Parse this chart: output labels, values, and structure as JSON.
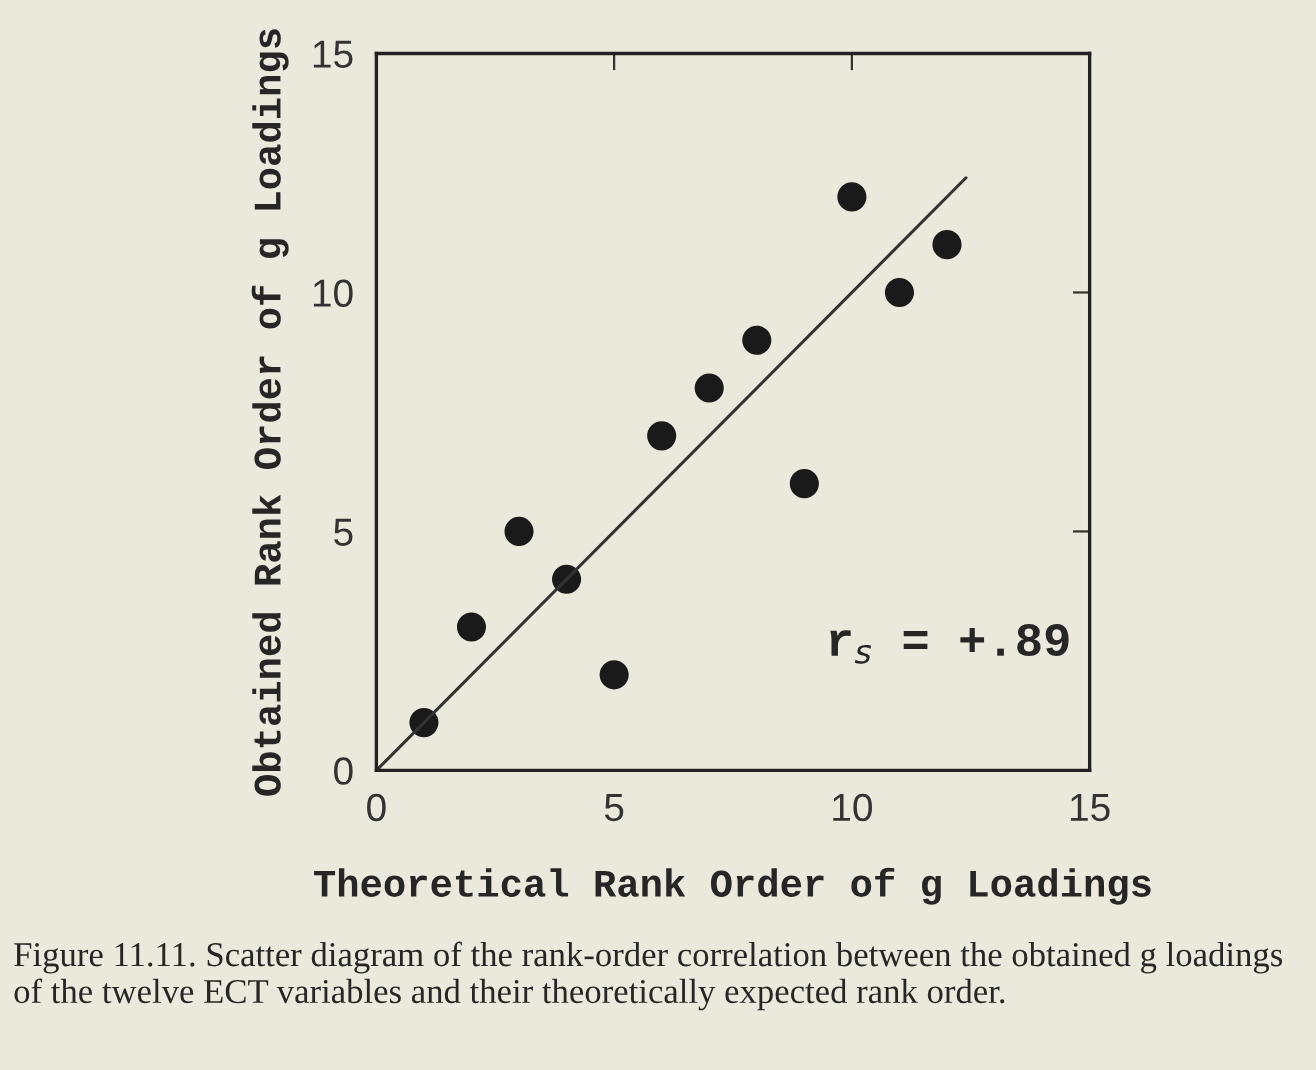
{
  "chart_data": {
    "type": "scatter",
    "xlabel": "Theoretical Rank Order of g Loadings",
    "ylabel": "Obtained Rank Order of g Loadings",
    "x": [
      1,
      2,
      3,
      4,
      5,
      6,
      7,
      8,
      9,
      10,
      11,
      12
    ],
    "series": [
      {
        "color": "#1a1a1a",
        "marker": "circle",
        "values": [
          1,
          3,
          5,
          4,
          2,
          7,
          8,
          9,
          6,
          12,
          10,
          11
        ]
      },
      {
        "type": "line",
        "color": "#333333",
        "x": [
          0,
          12.4
        ],
        "values": [
          0,
          12.4
        ],
        "marker": "none",
        "line_style": "solid"
      }
    ],
    "xlim": [
      0,
      15
    ],
    "ylim": [
      0,
      15
    ],
    "xticks": [
      0,
      5,
      10,
      15
    ],
    "yticks": [
      0,
      5,
      10,
      15
    ],
    "grid": false,
    "legend": false,
    "annotations": [
      {
        "text": "r$_{s}$ = +.89"
      },
      "Figure 11.11. Scatter diagram of the rank-order correlation between the obtained g loadings of the twelve ECT variables and their theoretically expected rank order."
    ]
  }
}
